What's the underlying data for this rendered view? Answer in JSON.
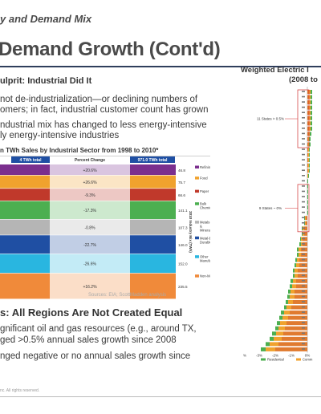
{
  "header": {
    "subtitle": "y and Demand Mix",
    "title": "Demand Growth (Cont'd)"
  },
  "left": {
    "heading_culprit": "ulprit: Industrial Did It",
    "paragraph1_line1": "not de-industrialization—or declining numbers of",
    "paragraph1_line2": "omers; in fact, industrial customer count has grown",
    "paragraph2_line1": "ndustrial mix has changed to less energy-intensive",
    "paragraph2_line2": "ly energy-intensive industries",
    "heading_regions": "s: All Regions Are Not Created Equal",
    "paragraph3_line1": "gnificant oil and gas resources (e.g., around TX,",
    "paragraph3_line2": "ged >0.5% annual sales growth since 2008",
    "paragraph4_line1": "nged negative or no annual sales growth since",
    "copyright": "nc. All rights reserved."
  },
  "right": {
    "title_line1": "Weighted Electric I",
    "title_line2": "(2008 to"
  },
  "chart_data": [
    {
      "type": "table",
      "title": "n TWh Sales by Industrial Sector from 1998 to 2010*",
      "column_headers": [
        "4 TWh total",
        "Percent Change",
        "971.0 TWh total"
      ],
      "side_label": "2010 Industry Mix (TWh)",
      "rows": [
        {
          "category": "Refining",
          "percent_change": "+20.6%",
          "value_2010": "46.8",
          "color": "#7b2f8e"
        },
        {
          "category": "Food",
          "percent_change": "+26.6%",
          "value_2010": "75.7",
          "color": "#f0a22e"
        },
        {
          "category": "Paper",
          "percent_change": "-9.3%",
          "value_2010": "66.6",
          "color": "#c0392b"
        },
        {
          "category": "Bulk Chemical",
          "percent_change": "-17.3%",
          "value_2010": "141.1",
          "color": "#4caf50"
        },
        {
          "category": "Metals & Minerals**",
          "percent_change": "-0.8%",
          "value_2010": "107.3",
          "color": "#b5b5b5"
        },
        {
          "category": "Metal-based Durables",
          "percent_change": "-22.7%",
          "value_2010": "146.0",
          "color": "#1f4fa3"
        },
        {
          "category": "Other Manufacturing",
          "percent_change": "-26.6%",
          "value_2010": "152.0",
          "color": "#29b6e0"
        },
        {
          "category": "Non-Manufacturing",
          "percent_change": "+16.2%",
          "value_2010": "235.5",
          "color": "#f08a3a"
        }
      ],
      "source": "Sources: EIA; ScottMadden analysis"
    },
    {
      "type": "bar",
      "orientation": "horizontal-stacked",
      "title": "Weighted Electric I (2008 to",
      "group_labels": [
        "11 States > 0.5%",
        "9 States ~ 0%"
      ],
      "x_ticks": [
        "-4%",
        "-3%",
        "-2%",
        "-1%",
        "0%"
      ],
      "legend": [
        "Residential",
        "Comm"
      ],
      "colors": {
        "residential": "#4caf50",
        "commercial": "#f0a22e",
        "industrial": "#e07a2f"
      },
      "series": [
        {
          "name": "Residential",
          "values": [
            0.1,
            0.1,
            0.1,
            0.1,
            0.1,
            0.1,
            0.1,
            0.1,
            0.1,
            0.1,
            0.1,
            0.05,
            0.05,
            0.05,
            0.05,
            0.05,
            0.05,
            0.05,
            0.05,
            0.05,
            0.05,
            0.05,
            0.05,
            0.05,
            -0.05,
            -0.05,
            -0.05,
            -0.05,
            -0.05,
            -0.1,
            -0.1,
            -0.1,
            -0.1,
            -0.1,
            -0.1,
            -0.1,
            -0.15,
            -0.15,
            -0.15,
            -0.15,
            -0.15,
            -0.15,
            -0.2,
            -0.2,
            -0.2,
            -0.2,
            -0.25,
            -0.25,
            -0.25,
            -0.3
          ]
        },
        {
          "name": "Comm",
          "values": [
            0.1,
            0.1,
            0.1,
            0.1,
            0.1,
            0.1,
            0.1,
            0.1,
            0.05,
            0.05,
            0.05,
            0.05,
            0.05,
            0.05,
            0.05,
            0.05,
            0.05,
            0.0,
            0.0,
            0.0,
            0.0,
            0.0,
            0.0,
            0.0,
            -0.05,
            -0.05,
            -0.1,
            -0.1,
            -0.1,
            -0.1,
            -0.15,
            -0.15,
            -0.15,
            -0.2,
            -0.2,
            -0.2,
            -0.2,
            -0.25,
            -0.25,
            -0.3,
            -0.3,
            -0.3,
            -0.35,
            -0.35,
            -0.4,
            -0.4,
            -0.45,
            -0.5,
            -0.55,
            -0.6
          ]
        },
        {
          "name": "Industrial",
          "values": [
            0.1,
            0.1,
            0.1,
            0.1,
            0.1,
            0.1,
            0.1,
            0.1,
            0.1,
            0.05,
            0.05,
            0.05,
            0.05,
            0.05,
            0.05,
            0.05,
            0.0,
            0.0,
            0.0,
            0.0,
            0.0,
            0.0,
            0.0,
            0.0,
            -0.1,
            -0.1,
            -0.2,
            -0.2,
            -0.3,
            -0.3,
            -0.4,
            -0.4,
            -0.5,
            -0.5,
            -0.6,
            -0.6,
            -0.7,
            -0.7,
            -0.8,
            -0.8,
            -0.9,
            -1.0,
            -1.1,
            -1.2,
            -1.3,
            -1.4,
            -1.5,
            -1.6,
            -1.8,
            -2.0
          ]
        }
      ]
    }
  ]
}
